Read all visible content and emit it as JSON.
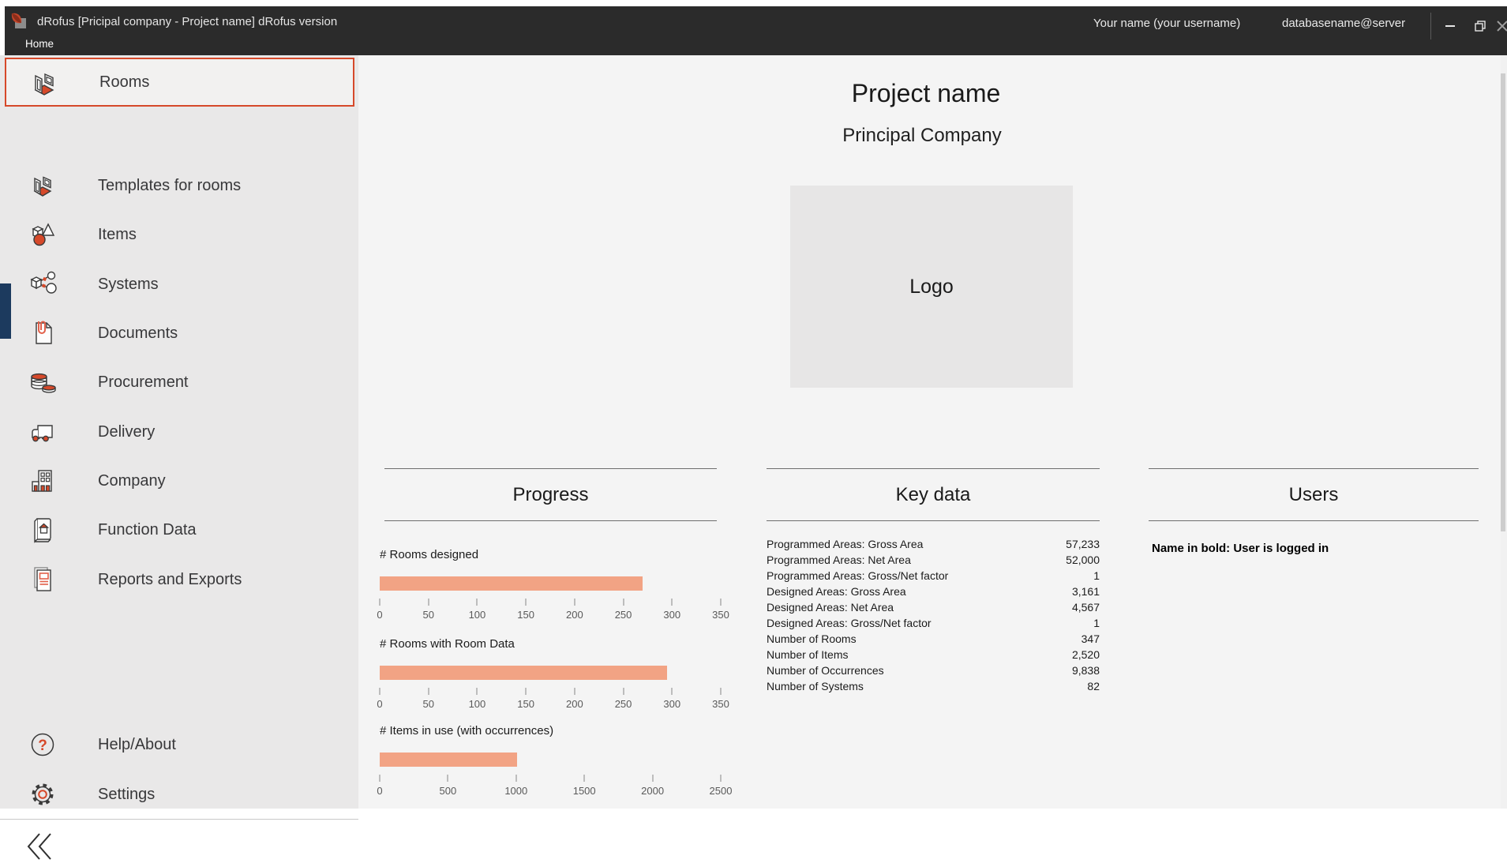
{
  "window": {
    "title": "dRofus [Pricipal company - Project name] dRofus version",
    "menu_home": "Home",
    "user": "Your name (your username)",
    "database": "databasename@server"
  },
  "sidebar": {
    "items": [
      {
        "label": "Rooms",
        "icon": "rooms-icon",
        "selected": true
      },
      {
        "label": "Templates for rooms",
        "icon": "room-template-icon",
        "selected": false
      },
      {
        "label": "Items",
        "icon": "items-icon",
        "selected": false
      },
      {
        "label": "Systems",
        "icon": "systems-icon",
        "selected": false
      },
      {
        "label": "Documents",
        "icon": "documents-icon",
        "selected": false
      },
      {
        "label": "Procurement",
        "icon": "procurement-icon",
        "selected": false
      },
      {
        "label": "Delivery",
        "icon": "delivery-icon",
        "selected": false
      },
      {
        "label": "Company",
        "icon": "company-icon",
        "selected": false
      },
      {
        "label": "Function Data",
        "icon": "function-data-icon",
        "selected": false
      },
      {
        "label": "Reports and Exports",
        "icon": "reports-icon",
        "selected": false
      }
    ],
    "footer_items": [
      {
        "label": "Help/About",
        "icon": "help-icon"
      },
      {
        "label": "Settings",
        "icon": "settings-icon"
      }
    ]
  },
  "main": {
    "project_name": "Project name",
    "company_name": "Principal Company",
    "logo_placeholder": "Logo",
    "section_progress": "Progress",
    "section_key_data": "Key data",
    "section_users": "Users",
    "users_note": "Name in bold: User is logged in"
  },
  "chart_data": [
    {
      "type": "bar",
      "orientation": "horizontal",
      "title": "# Rooms designed",
      "values": [
        270
      ],
      "xlim": [
        0,
        350
      ],
      "xticks": [
        0,
        50,
        100,
        150,
        200,
        250,
        300,
        350
      ],
      "bar_color": "#f2a384",
      "grid": false,
      "legend": false
    },
    {
      "type": "bar",
      "orientation": "horizontal",
      "title": "# Rooms with Room Data",
      "values": [
        295
      ],
      "xlim": [
        0,
        350
      ],
      "xticks": [
        0,
        50,
        100,
        150,
        200,
        250,
        300,
        350
      ],
      "bar_color": "#f2a384",
      "grid": false,
      "legend": false
    },
    {
      "type": "bar",
      "orientation": "horizontal",
      "title": "# Items in use (with occurrences)",
      "values": [
        1005
      ],
      "xlim": [
        0,
        2500
      ],
      "xticks": [
        0,
        500,
        1000,
        1500,
        2000,
        2500
      ],
      "bar_color": "#f2a384",
      "grid": false,
      "legend": false
    }
  ],
  "key_data": {
    "rows": [
      {
        "label": "Programmed Areas: Gross Area",
        "value": "57,233"
      },
      {
        "label": "Programmed Areas: Net Area",
        "value": "52,000"
      },
      {
        "label": "Programmed Areas: Gross/Net factor",
        "value": "1"
      },
      {
        "label": "Designed Areas: Gross Area",
        "value": "3,161"
      },
      {
        "label": "Designed Areas: Net Area",
        "value": "4,567"
      },
      {
        "label": "Designed Areas: Gross/Net factor",
        "value": "1"
      },
      {
        "label": "Number of Rooms",
        "value": "347"
      },
      {
        "label": "Number of Items",
        "value": "2,520"
      },
      {
        "label": "Number of Occurrences",
        "value": "9,838"
      },
      {
        "label": "Number of Systems",
        "value": "82"
      }
    ]
  },
  "colors": {
    "accent": "#d6492a",
    "bar": "#f2a384",
    "titlebar": "#2b2b2b",
    "sidebar_bg": "#e9e8e8",
    "main_bg": "#f4f4f4",
    "navy_strip": "#1c3a5e"
  }
}
